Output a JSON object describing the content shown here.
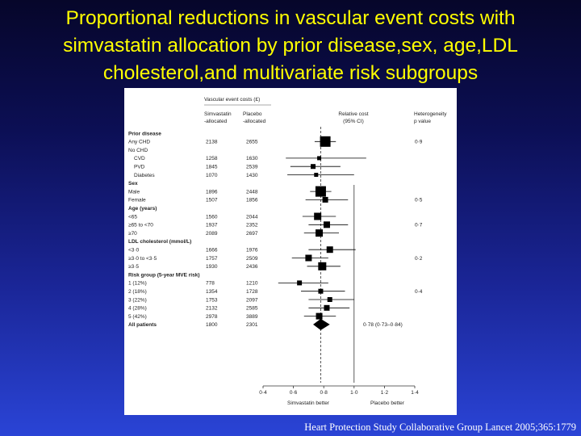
{
  "slide": {
    "title_lines": [
      "Proportional reductions in vascular event costs with",
      "simvastatin allocation by prior disease,sex, age,LDL",
      "cholesterol,and multivariate risk subgroups"
    ],
    "citation": "Heart Protection Study Collaborative Group Lancet 2005;365:1779"
  },
  "chart_data": {
    "type": "forest",
    "header": {
      "costs_title": "Vascular event costs (£)",
      "col_simva": [
        "Simvastatin",
        "-allocated"
      ],
      "col_placebo": [
        "Placebo",
        "-allocated"
      ],
      "col_relcost": [
        "Relative cost",
        "(95% CI)"
      ],
      "col_het": [
        "Heterogeneity",
        "p value"
      ]
    },
    "rows": [
      {
        "label": "Prior disease",
        "heading": true
      },
      {
        "label": "Any CHD",
        "simva": "2138",
        "placebo": "2655",
        "est": 0.81,
        "lo": 0.74,
        "hi": 0.88,
        "box": 13,
        "het": "0·9"
      },
      {
        "label": "No CHD",
        "subheading": true
      },
      {
        "label": "CVD",
        "indent": true,
        "simva": "1258",
        "placebo": "1630",
        "est": 0.77,
        "lo": 0.55,
        "hi": 1.08,
        "box": 5
      },
      {
        "label": "PVD",
        "indent": true,
        "simva": "1845",
        "placebo": "2539",
        "est": 0.73,
        "lo": 0.58,
        "hi": 0.91,
        "box": 6
      },
      {
        "label": "Diabetes",
        "indent": true,
        "simva": "1070",
        "placebo": "1430",
        "est": 0.75,
        "lo": 0.56,
        "hi": 1.0,
        "box": 5
      },
      {
        "label": "Sex",
        "heading": true
      },
      {
        "label": "Male",
        "simva": "1896",
        "placebo": "2448",
        "est": 0.78,
        "lo": 0.71,
        "hi": 0.85,
        "box": 13
      },
      {
        "label": "Female",
        "simva": "1507",
        "placebo": "1856",
        "est": 0.81,
        "lo": 0.68,
        "hi": 0.96,
        "box": 7,
        "het": "0·5"
      },
      {
        "label": "Age (years)",
        "heading": true
      },
      {
        "label": "<65",
        "simva": "1560",
        "placebo": "2044",
        "est": 0.76,
        "lo": 0.66,
        "hi": 0.88,
        "box": 9
      },
      {
        "label": "≥65 to <70",
        "simva": "1937",
        "placebo": "2352",
        "est": 0.82,
        "lo": 0.7,
        "hi": 0.96,
        "box": 8,
        "het": "0·7"
      },
      {
        "label": "≥70",
        "simva": "2089",
        "placebo": "2697",
        "est": 0.77,
        "lo": 0.67,
        "hi": 0.9,
        "box": 9
      },
      {
        "label": "LDL cholesterol (mmol/L)",
        "heading": true
      },
      {
        "label": "<3·0",
        "simva": "1666",
        "placebo": "1976",
        "est": 0.84,
        "lo": 0.7,
        "hi": 1.01,
        "box": 8
      },
      {
        "label": "≥3·0 to <3·5",
        "simva": "1757",
        "placebo": "2509",
        "est": 0.7,
        "lo": 0.59,
        "hi": 0.83,
        "box": 8,
        "het": "0·2"
      },
      {
        "label": "≥3·5",
        "simva": "1930",
        "placebo": "2436",
        "est": 0.79,
        "lo": 0.69,
        "hi": 0.91,
        "box": 10
      },
      {
        "label": "Risk group (5-year MVE risk)",
        "heading": true
      },
      {
        "label": "1 (12%)",
        "simva": "778",
        "placebo": "1210",
        "est": 0.64,
        "lo": 0.5,
        "hi": 0.83,
        "box": 6
      },
      {
        "label": "2 (18%)",
        "simva": "1354",
        "placebo": "1728",
        "est": 0.78,
        "lo": 0.65,
        "hi": 0.94,
        "box": 6,
        "het": "0·4"
      },
      {
        "label": "3 (22%)",
        "simva": "1753",
        "placebo": "2097",
        "est": 0.84,
        "lo": 0.7,
        "hi": 1.0,
        "box": 6
      },
      {
        "label": "4 (28%)",
        "simva": "2132",
        "placebo": "2585",
        "est": 0.82,
        "lo": 0.7,
        "hi": 0.97,
        "box": 7
      },
      {
        "label": "5 (42%)",
        "simva": "2978",
        "placebo": "3889",
        "est": 0.77,
        "lo": 0.67,
        "hi": 0.88,
        "box": 8
      },
      {
        "label": "All patients",
        "heading": true,
        "summary": true,
        "simva": "1800",
        "placebo": "2301",
        "est": 0.78,
        "lo": 0.73,
        "hi": 0.84,
        "ci_text": "0·78 (0·73–0·84)"
      }
    ],
    "x_ticks": [
      0.4,
      0.6,
      0.8,
      1.0,
      1.2,
      1.4
    ],
    "x_tick_labels": [
      "0·4",
      "0·6",
      "0·8",
      "1·0",
      "1·2",
      "1·4"
    ],
    "xlim": [
      0.4,
      1.4
    ],
    "reference_line": 1.0,
    "overall_line": 0.78,
    "favours_left": "Simvastatin better",
    "favours_right": "Placebo better"
  }
}
